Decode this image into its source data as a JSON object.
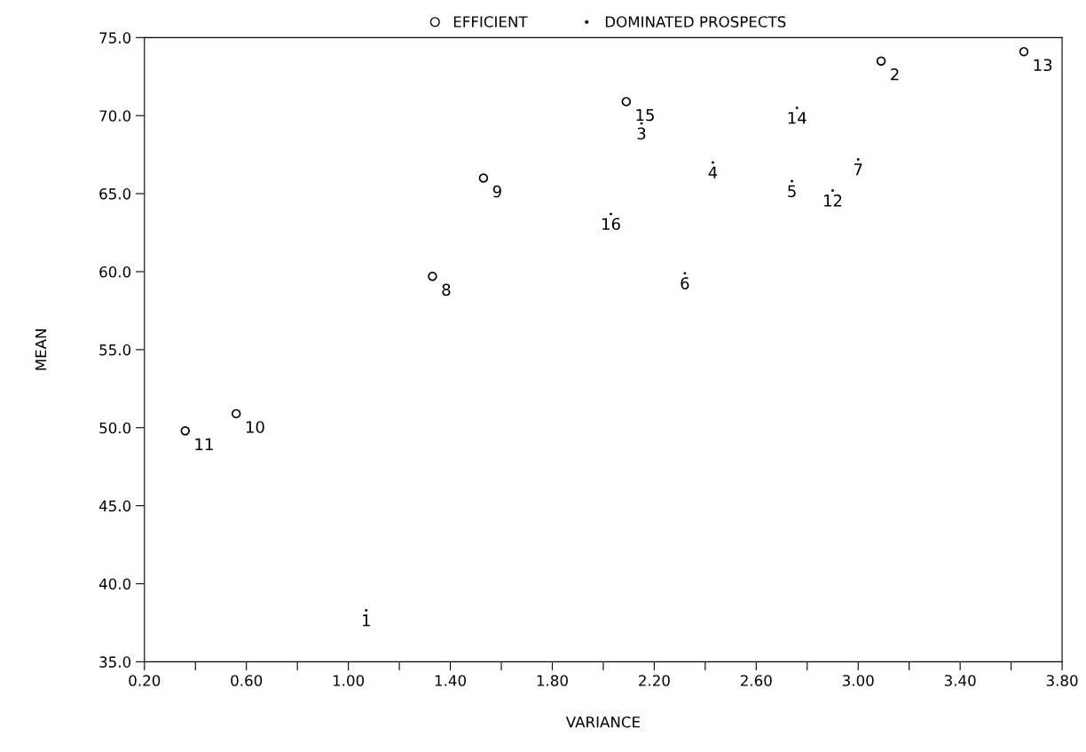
{
  "chart_data": {
    "type": "scatter",
    "xlabel": "VARIANCE",
    "ylabel": "MEAN",
    "series": [
      {
        "name": "EFFICIENT",
        "marker": "circle",
        "color": "#000000",
        "x": [
          0.36,
          0.56,
          1.33,
          1.53,
          2.09,
          3.09,
          3.65
        ],
        "values": [
          49.8,
          50.9,
          59.7,
          66.0,
          70.9,
          73.5,
          74.1
        ]
      },
      {
        "name": "DOMINATED PROSPECTS",
        "marker": "none",
        "color": "#000000",
        "x": [
          1.07,
          2.15,
          2.43,
          2.74,
          2.32,
          3.0,
          2.9,
          2.76,
          2.03
        ],
        "values": [
          38.3,
          69.5,
          67.0,
          65.8,
          59.9,
          67.2,
          65.2,
          70.5,
          63.7
        ]
      }
    ],
    "annotations": [
      {
        "text": "11",
        "x": 0.36,
        "y": 49.8
      },
      {
        "text": "10",
        "x": 0.56,
        "y": 50.9
      },
      {
        "text": "8",
        "x": 1.33,
        "y": 59.7
      },
      {
        "text": "9",
        "x": 1.53,
        "y": 66.0
      },
      {
        "text": "15",
        "x": 2.09,
        "y": 70.9
      },
      {
        "text": "2",
        "x": 3.09,
        "y": 73.5
      },
      {
        "text": "13",
        "x": 3.65,
        "y": 74.1
      },
      {
        "text": "1",
        "x": 1.07,
        "y": 38.3
      },
      {
        "text": "3",
        "x": 2.15,
        "y": 69.5
      },
      {
        "text": "4",
        "x": 2.43,
        "y": 67.0
      },
      {
        "text": "5",
        "x": 2.74,
        "y": 65.8
      },
      {
        "text": "6",
        "x": 2.32,
        "y": 59.9
      },
      {
        "text": "7",
        "x": 3.0,
        "y": 67.2
      },
      {
        "text": "12",
        "x": 2.9,
        "y": 65.2
      },
      {
        "text": "14",
        "x": 2.76,
        "y": 70.5
      },
      {
        "text": "16",
        "x": 2.03,
        "y": 63.7
      }
    ],
    "xlim": [
      0.2,
      3.8
    ],
    "ylim": [
      35,
      75
    ],
    "xticks": [
      {
        "value": 0.2,
        "label": "0.20"
      },
      {
        "value": 0.4,
        "label": null
      },
      {
        "value": 0.6,
        "label": "0.60"
      },
      {
        "value": 0.8,
        "label": null
      },
      {
        "value": 1.0,
        "label": "1.00"
      },
      {
        "value": 1.2,
        "label": null
      },
      {
        "value": 1.4,
        "label": "1.40"
      },
      {
        "value": 1.6,
        "label": null
      },
      {
        "value": 1.8,
        "label": "1.80"
      },
      {
        "value": 2.0,
        "label": null
      },
      {
        "value": 2.2,
        "label": "2.20"
      },
      {
        "value": 2.4,
        "label": null
      },
      {
        "value": 2.6,
        "label": "2.60"
      },
      {
        "value": 2.8,
        "label": null
      },
      {
        "value": 3.0,
        "label": "3.00"
      },
      {
        "value": 3.2,
        "label": null
      },
      {
        "value": 3.4,
        "label": "3.40"
      },
      {
        "value": 3.6,
        "label": null
      },
      {
        "value": 3.8,
        "label": "3.80"
      }
    ],
    "yticks": [
      {
        "value": 35,
        "label": "35.0"
      },
      {
        "value": 40,
        "label": "40.0"
      },
      {
        "value": 45,
        "label": "45.0"
      },
      {
        "value": 50,
        "label": "50.0"
      },
      {
        "value": 55,
        "label": "55.0"
      },
      {
        "value": 60,
        "label": "60.0"
      },
      {
        "value": 65,
        "label": "65.0"
      },
      {
        "value": 70,
        "label": "70.0"
      },
      {
        "value": 75,
        "label": "75.0"
      }
    ],
    "grid": false,
    "legend": "top"
  }
}
